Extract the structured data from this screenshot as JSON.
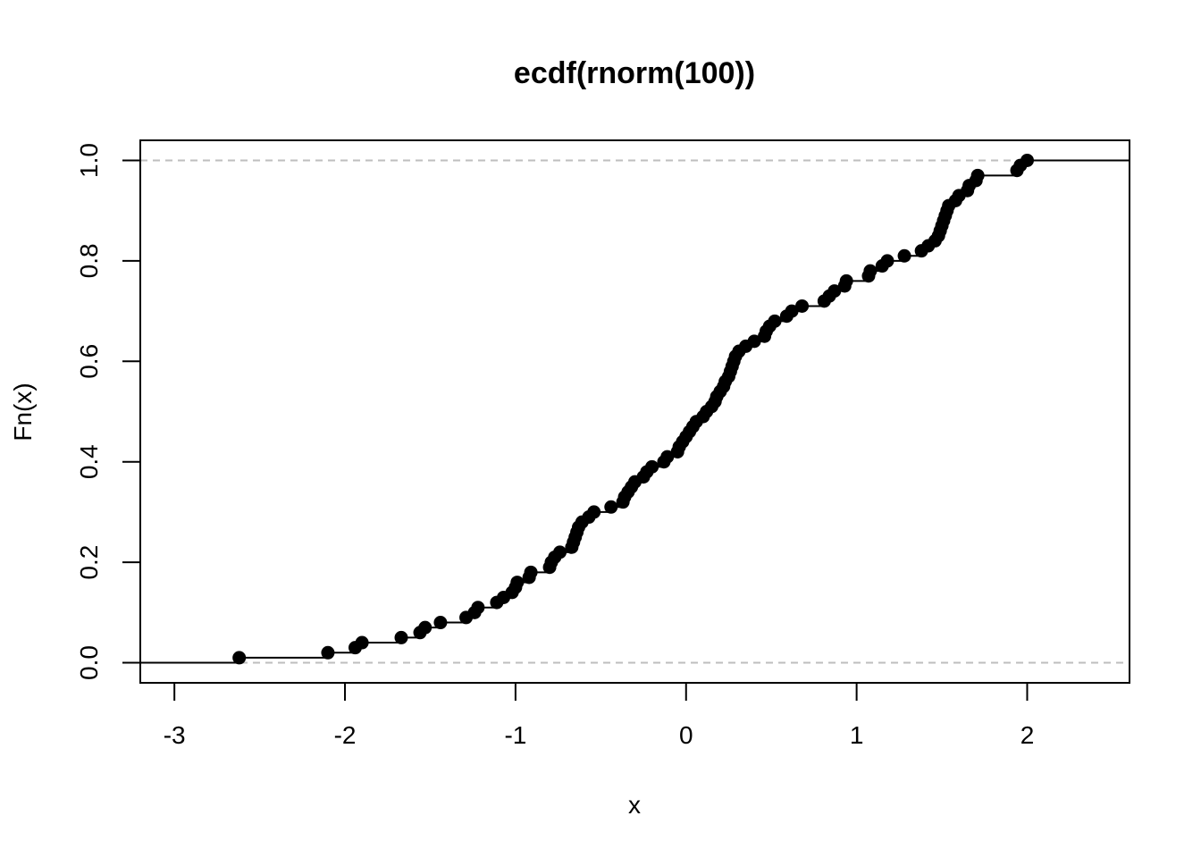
{
  "chart_data": {
    "type": "step",
    "title": "ecdf(rnorm(100))",
    "xlabel": "x",
    "ylabel": "Fn(x)",
    "xlim": [
      -3.2,
      2.6
    ],
    "ylim": [
      -0.04,
      1.04
    ],
    "x_ticks": [
      -3,
      -2,
      -1,
      0,
      1,
      2
    ],
    "x_tick_labels": [
      "-3",
      "-2",
      "-1",
      "0",
      "1",
      "2"
    ],
    "y_ticks": [
      0.0,
      0.2,
      0.4,
      0.6,
      0.8,
      1.0
    ],
    "y_tick_labels": [
      "0.0",
      "0.2",
      "0.4",
      "0.6",
      "0.8",
      "1.0"
    ],
    "reference_lines": [
      0.0,
      1.0
    ],
    "grid": false,
    "series": [
      {
        "x": [
          -2.62,
          -2.1,
          -1.94,
          -1.9,
          -1.67,
          -1.56,
          -1.53,
          -1.44,
          -1.29,
          -1.24,
          -1.22,
          -1.11,
          -1.07,
          -1.02,
          -1.0,
          -0.99,
          -0.92,
          -0.91,
          -0.8,
          -0.79,
          -0.77,
          -0.74,
          -0.67,
          -0.66,
          -0.65,
          -0.64,
          -0.63,
          -0.61,
          -0.57,
          -0.54,
          -0.44,
          -0.37,
          -0.36,
          -0.34,
          -0.32,
          -0.3,
          -0.25,
          -0.23,
          -0.2,
          -0.13,
          -0.11,
          -0.05,
          -0.04,
          -0.02,
          0.0,
          0.02,
          0.04,
          0.06,
          0.1,
          0.12,
          0.15,
          0.17,
          0.18,
          0.2,
          0.22,
          0.23,
          0.25,
          0.26,
          0.27,
          0.28,
          0.29,
          0.31,
          0.35,
          0.4,
          0.46,
          0.47,
          0.49,
          0.52,
          0.59,
          0.62,
          0.68,
          0.81,
          0.84,
          0.87,
          0.93,
          0.94,
          1.07,
          1.08,
          1.15,
          1.18,
          1.28,
          1.38,
          1.42,
          1.46,
          1.48,
          1.49,
          1.5,
          1.51,
          1.52,
          1.53,
          1.54,
          1.58,
          1.6,
          1.65,
          1.66,
          1.7,
          1.71,
          1.94,
          1.96,
          2.0
        ],
        "y": [
          0.01,
          0.02,
          0.03,
          0.04,
          0.05,
          0.06,
          0.07,
          0.08,
          0.09,
          0.1,
          0.11,
          0.12,
          0.13,
          0.14,
          0.15,
          0.16,
          0.17,
          0.18,
          0.19,
          0.2,
          0.21,
          0.22,
          0.23,
          0.24,
          0.25,
          0.26,
          0.27,
          0.28,
          0.29,
          0.3,
          0.31,
          0.32,
          0.33,
          0.34,
          0.35,
          0.36,
          0.37,
          0.38,
          0.39,
          0.4,
          0.41,
          0.42,
          0.43,
          0.44,
          0.45,
          0.46,
          0.47,
          0.48,
          0.49,
          0.5,
          0.51,
          0.52,
          0.53,
          0.54,
          0.55,
          0.56,
          0.57,
          0.58,
          0.59,
          0.6,
          0.61,
          0.62,
          0.63,
          0.64,
          0.65,
          0.66,
          0.67,
          0.68,
          0.69,
          0.7,
          0.71,
          0.72,
          0.73,
          0.74,
          0.75,
          0.76,
          0.77,
          0.78,
          0.79,
          0.8,
          0.81,
          0.82,
          0.83,
          0.84,
          0.85,
          0.86,
          0.87,
          0.88,
          0.89,
          0.9,
          0.91,
          0.92,
          0.93,
          0.94,
          0.95,
          0.96,
          0.97,
          0.98,
          0.99,
          1.0
        ]
      }
    ],
    "colors": {
      "points": "#000000",
      "steps": "#000000",
      "reference_lines": "#bebebe"
    }
  }
}
